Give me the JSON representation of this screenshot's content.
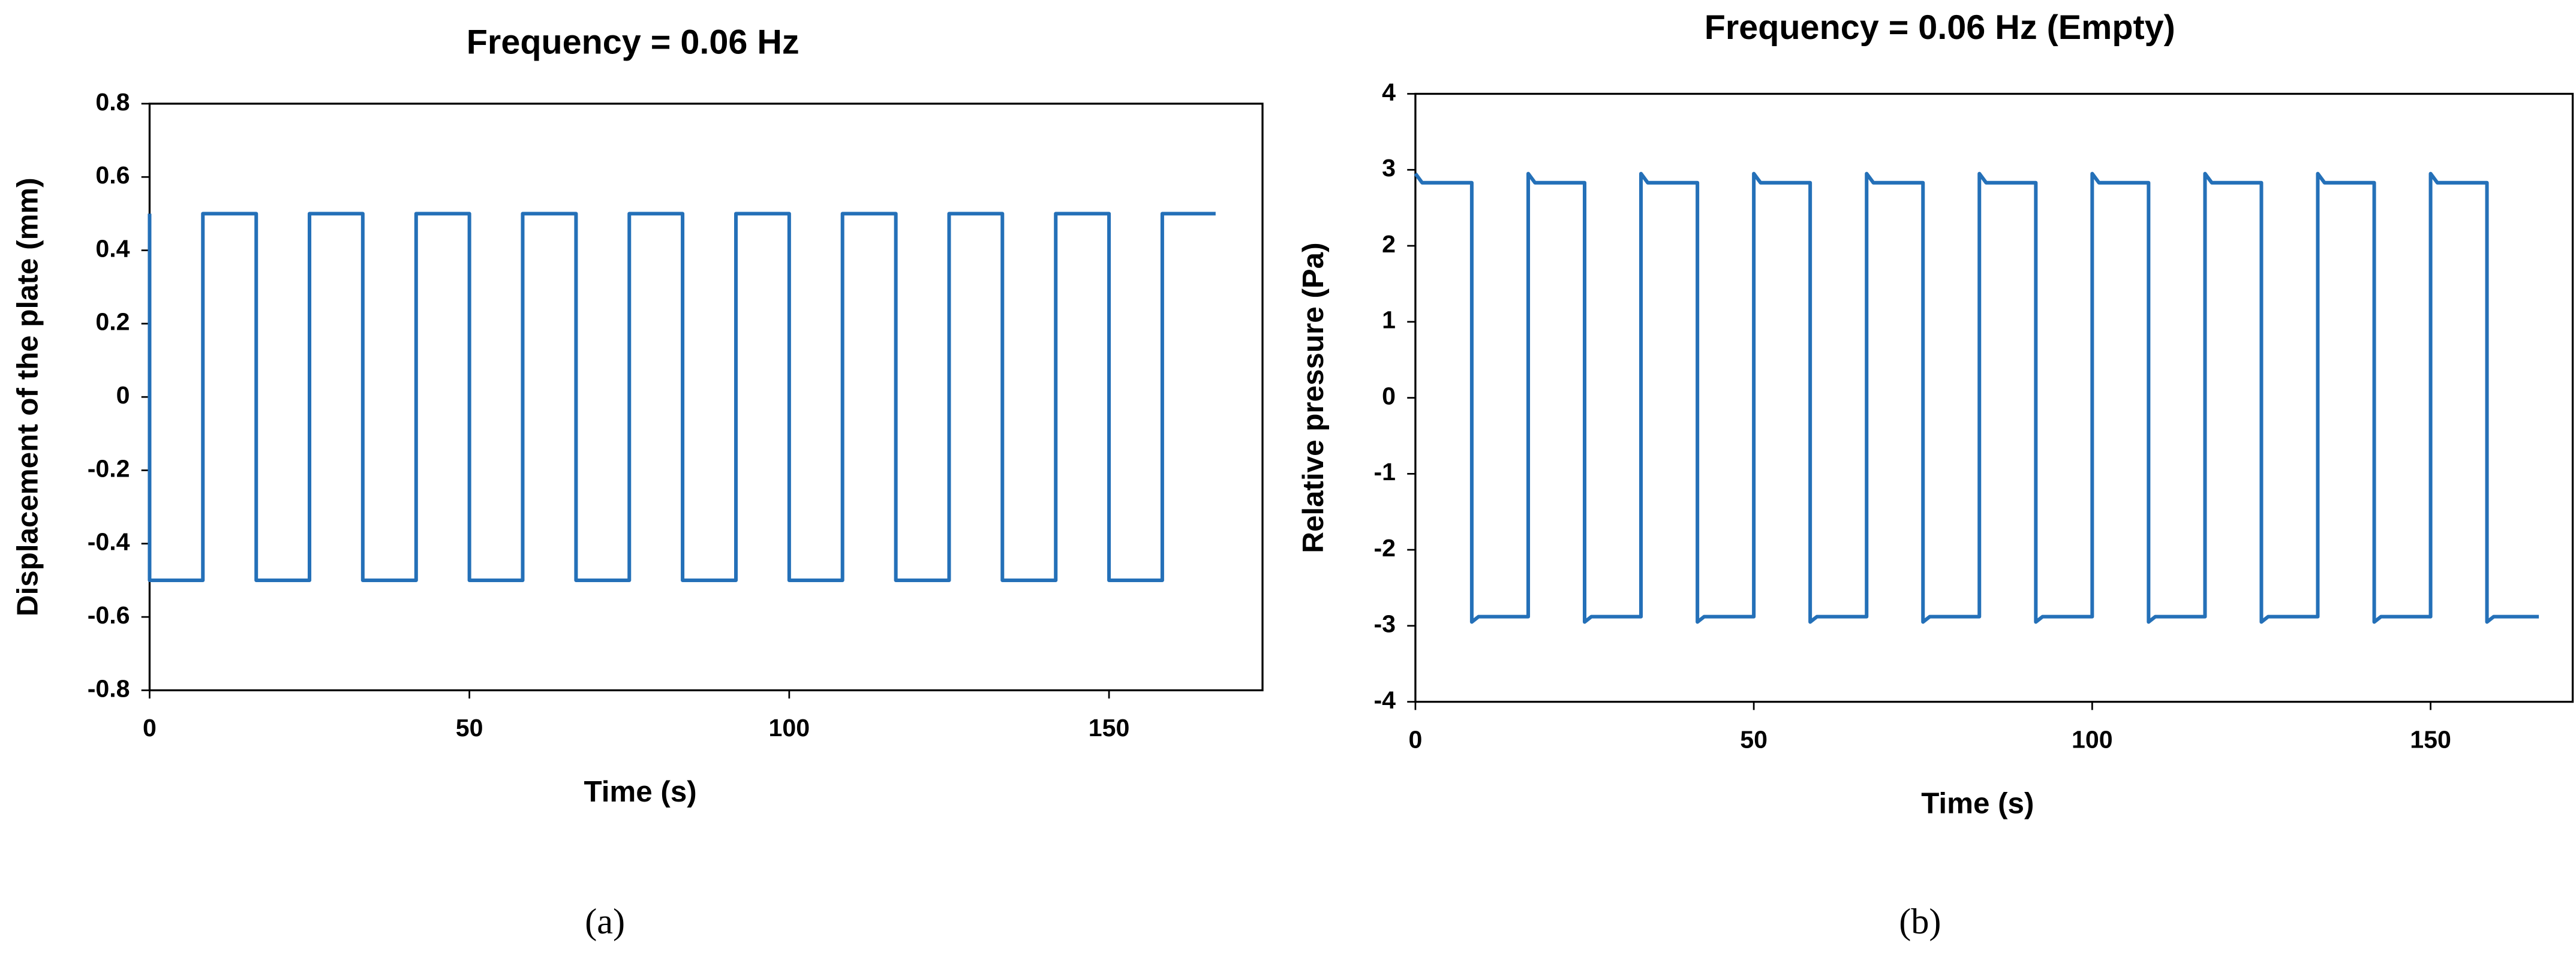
{
  "chart_data": [
    {
      "type": "line",
      "title": "Frequency = 0.06 Hz",
      "xlabel": "Time (s)",
      "ylabel": "Displacement of the plate (mm)",
      "caption": "(a)",
      "xlim": [
        0,
        174
      ],
      "xticks": [
        0,
        50,
        100,
        150
      ],
      "ylim": [
        -0.8,
        0.8
      ],
      "yticks": [
        -0.8,
        -0.6,
        -0.4,
        -0.2,
        0,
        0.2,
        0.4,
        0.6,
        0.8
      ],
      "series": [
        {
          "name": "Displacement",
          "color": "#2470b8",
          "x": [
            0,
            0,
            8.33,
            8.33,
            16.67,
            16.67,
            25,
            25,
            33.33,
            33.33,
            41.67,
            41.67,
            50,
            50,
            58.33,
            58.33,
            66.67,
            66.67,
            75,
            75,
            83.33,
            83.33,
            91.67,
            91.67,
            100,
            100,
            108.33,
            108.33,
            116.67,
            116.67,
            125,
            125,
            133.33,
            133.33,
            141.67,
            141.67,
            150,
            150,
            158.33,
            158.33,
            166.67
          ],
          "values": [
            0.5,
            -0.5,
            -0.5,
            0.5,
            0.5,
            -0.5,
            -0.5,
            0.5,
            0.5,
            -0.5,
            -0.5,
            0.5,
            0.5,
            -0.5,
            -0.5,
            0.5,
            0.5,
            -0.5,
            -0.5,
            0.5,
            0.5,
            -0.5,
            -0.5,
            0.5,
            0.5,
            -0.5,
            -0.5,
            0.5,
            0.5,
            -0.5,
            -0.5,
            0.5,
            0.5,
            -0.5,
            -0.5,
            0.5,
            0.5,
            -0.5,
            -0.5,
            0.5,
            0.5
          ]
        }
      ]
    },
    {
      "type": "line",
      "title": "Frequency = 0.06 Hz (Empty)",
      "xlabel": "Time (s)",
      "ylabel": "Relative pressure (Pa)",
      "caption": "(b)",
      "xlim": [
        0,
        171
      ],
      "xticks": [
        0,
        50,
        100,
        150
      ],
      "ylim": [
        -4,
        4
      ],
      "yticks": [
        -4,
        -3,
        -2,
        -1,
        0,
        1,
        2,
        3,
        4
      ],
      "series": [
        {
          "name": "Pressure",
          "color": "#2470b8",
          "x": [
            0,
            1,
            8.33,
            8.33,
            9.33,
            16.67,
            16.67,
            17.67,
            25,
            25,
            26,
            33.33,
            33.33,
            34.33,
            41.67,
            41.67,
            42.67,
            50,
            50,
            51,
            58.33,
            58.33,
            59.33,
            66.67,
            66.67,
            67.67,
            75,
            75,
            76,
            83.33,
            83.33,
            84.33,
            91.67,
            91.67,
            92.67,
            100,
            100,
            101,
            108.33,
            108.33,
            109.33,
            116.67,
            116.67,
            117.67,
            125,
            125,
            126,
            133.33,
            133.33,
            134.33,
            141.67,
            141.67,
            142.67,
            150,
            150,
            151,
            158.33,
            158.33,
            159.33,
            166
          ],
          "values": [
            2.95,
            2.83,
            2.83,
            -2.95,
            -2.88,
            -2.88,
            2.95,
            2.83,
            2.83,
            -2.95,
            -2.88,
            -2.88,
            2.95,
            2.83,
            2.83,
            -2.95,
            -2.88,
            -2.88,
            2.95,
            2.83,
            2.83,
            -2.95,
            -2.88,
            -2.88,
            2.95,
            2.83,
            2.83,
            -2.95,
            -2.88,
            -2.88,
            2.95,
            2.83,
            2.83,
            -2.95,
            -2.88,
            -2.88,
            2.95,
            2.83,
            2.83,
            -2.95,
            -2.88,
            -2.88,
            2.95,
            2.83,
            2.83,
            -2.95,
            -2.88,
            -2.88,
            2.95,
            2.83,
            2.83,
            -2.95,
            -2.88,
            -2.88,
            2.95,
            2.83,
            2.83,
            -2.95,
            -2.88,
            -2.88
          ]
        }
      ]
    }
  ]
}
